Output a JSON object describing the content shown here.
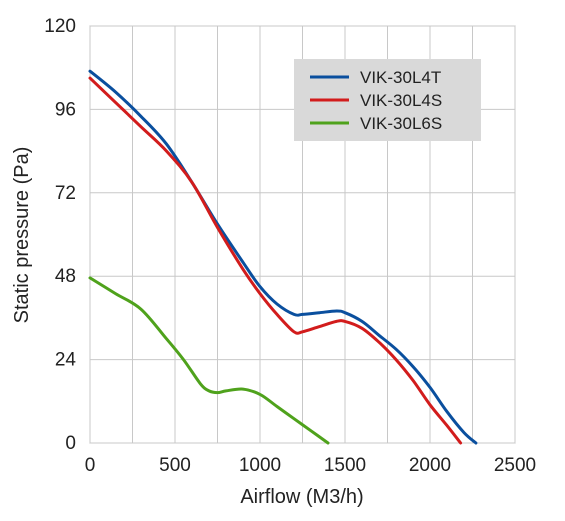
{
  "chart_data": {
    "type": "line",
    "xlabel": "Airflow (M3/h)",
    "ylabel": "Static pressure (Pa)",
    "xlim": [
      0,
      2500
    ],
    "ylim": [
      0,
      120
    ],
    "x_ticks": [
      0,
      500,
      1000,
      1500,
      2000,
      2500
    ],
    "y_ticks": [
      0,
      24,
      48,
      72,
      96,
      120
    ],
    "x_tick_labels": [
      "0",
      "500",
      "1000",
      "1500",
      "2000",
      "2500"
    ],
    "y_tick_labels": [
      "0",
      "24",
      "48",
      "72",
      "96",
      "120"
    ],
    "grid": true,
    "legend_position": "top-right",
    "series": [
      {
        "name": "VIK-30L4T",
        "color": "#0a4f9e",
        "x": [
          0,
          150,
          300,
          450,
          600,
          750,
          900,
          1000,
          1100,
          1200,
          1250,
          1350,
          1450,
          1500,
          1600,
          1700,
          1800,
          1900,
          2000,
          2100,
          2200,
          2270
        ],
        "y": [
          107,
          101,
          94,
          86,
          75,
          63,
          52,
          45,
          40,
          37,
          37,
          37.5,
          38,
          37.5,
          35,
          31,
          27,
          22,
          16,
          9,
          3,
          0
        ]
      },
      {
        "name": "VIK-30L4S",
        "color": "#d21c1c",
        "x": [
          0,
          150,
          300,
          450,
          600,
          750,
          900,
          1000,
          1100,
          1200,
          1250,
          1350,
          1450,
          1500,
          1600,
          1700,
          1800,
          1900,
          2000,
          2100,
          2180
        ],
        "y": [
          105,
          98,
          91,
          84,
          75,
          62,
          50,
          43,
          37,
          32,
          32,
          33.5,
          35,
          35,
          33,
          29,
          24,
          18,
          11,
          5,
          0
        ]
      },
      {
        "name": "VIK-30L6S",
        "color": "#4fa21c",
        "x": [
          0,
          150,
          300,
          450,
          550,
          650,
          700,
          750,
          800,
          900,
          1000,
          1100,
          1200,
          1300,
          1400
        ],
        "y": [
          47.5,
          43,
          38.5,
          30,
          24,
          17,
          15,
          14.5,
          15,
          15.5,
          14,
          10.5,
          7,
          3.5,
          0
        ]
      }
    ]
  }
}
